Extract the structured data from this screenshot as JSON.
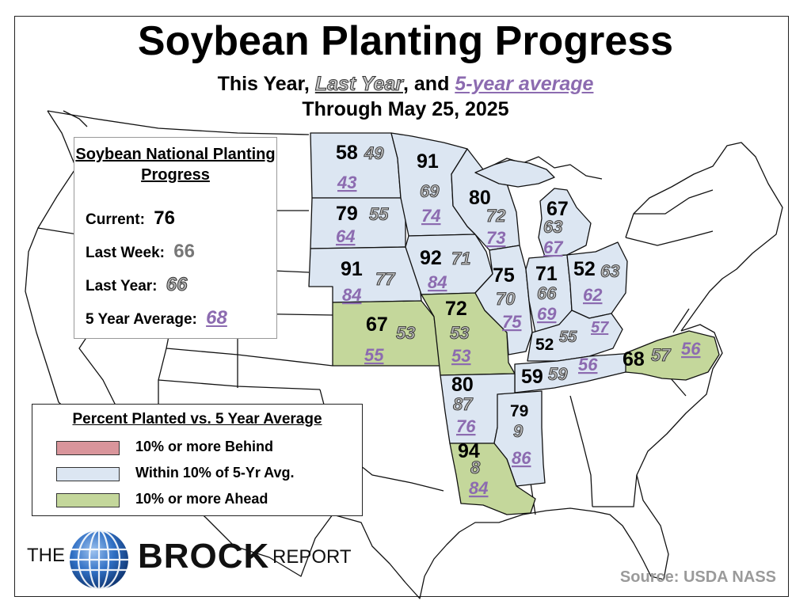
{
  "title": "Soybean Planting Progress",
  "subtitle": {
    "this_year": "This Year,",
    "last_year": "Last Year",
    "and": ", and",
    "average": "5-year average"
  },
  "through": "Through May 25, 2025",
  "national": {
    "title": "Soybean National Planting Progress",
    "current_label": "Current:",
    "current": "76",
    "last_week_label": "Last Week:",
    "last_week": "66",
    "last_year_label": "Last Year:",
    "last_year": "66",
    "avg_label": "5 Year Average:",
    "avg": "68"
  },
  "legend": {
    "title": "Percent Planted vs. 5 Year Average",
    "items": [
      {
        "label": "10% or more Behind",
        "color": "#d9959b"
      },
      {
        "label": "Within 10% of 5-Yr Avg.",
        "color": "#dce6f2"
      },
      {
        "label": "10% or more Ahead",
        "color": "#c4d79b"
      }
    ]
  },
  "colors": {
    "within": "#dce6f2",
    "ahead": "#c4d79b",
    "behind": "#d9959b",
    "avg_text": "#8c6bb0",
    "last_year_text": "#b4b4b4"
  },
  "states": {
    "nd": {
      "current": "58",
      "last_year": "49",
      "avg": "43",
      "status": "within"
    },
    "sd": {
      "current": "79",
      "last_year": "55",
      "avg": "64",
      "status": "within"
    },
    "ne": {
      "current": "91",
      "last_year": "77",
      "avg": "84",
      "status": "within"
    },
    "ks": {
      "current": "67",
      "last_year": "53",
      "avg": "55",
      "status": "ahead"
    },
    "mn": {
      "current": "91",
      "last_year": "69",
      "avg": "74",
      "status": "within"
    },
    "ia": {
      "current": "92",
      "last_year": "71",
      "avg": "84",
      "status": "within"
    },
    "mo": {
      "current": "72",
      "last_year": "53",
      "avg": "53",
      "status": "ahead"
    },
    "wi": {
      "current": "80",
      "last_year": "72",
      "avg": "73",
      "status": "within"
    },
    "il": {
      "current": "75",
      "last_year": "70",
      "avg": "75",
      "status": "within"
    },
    "mi": {
      "current": "67",
      "last_year": "63",
      "avg": "67",
      "status": "within"
    },
    "in": {
      "current": "71",
      "last_year": "66",
      "avg": "69",
      "status": "within"
    },
    "oh": {
      "current": "52",
      "last_year": "63",
      "avg": "62",
      "status": "within"
    },
    "ky": {
      "current": "52",
      "last_year": "55",
      "avg": "57",
      "status": "within"
    },
    "tn": {
      "current": "59",
      "last_year": "59",
      "avg": "56",
      "status": "within"
    },
    "nc": {
      "current": "68",
      "last_year": "57",
      "avg": "56",
      "status": "ahead"
    },
    "ar": {
      "current": "80",
      "last_year": "87",
      "avg": "76",
      "status": "within"
    },
    "ms": {
      "current": "79",
      "last_year": "9",
      "avg": "86",
      "status": "within"
    },
    "la": {
      "current": "94",
      "last_year": "8",
      "avg": "84",
      "status": "ahead"
    }
  },
  "brand": {
    "the": "THE",
    "name": "BROCK",
    "report": "REPORT"
  },
  "source": "Source: USDA NASS"
}
